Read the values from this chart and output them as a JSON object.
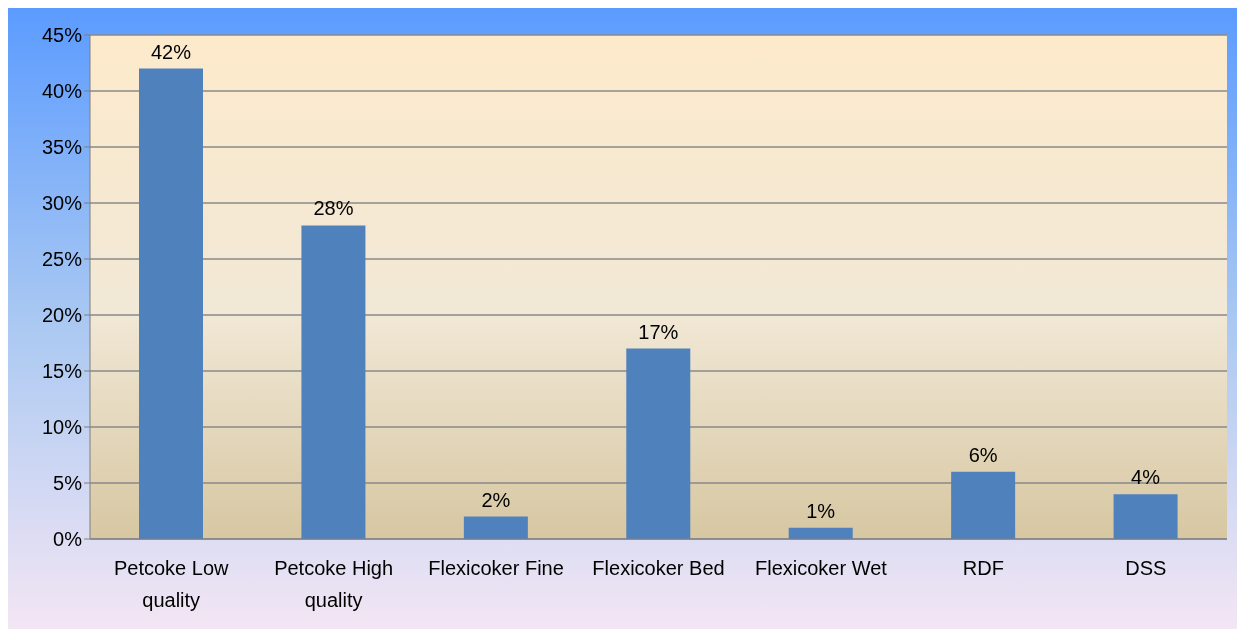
{
  "chart_data": {
    "type": "bar",
    "categories": [
      "Petcoke Low quality",
      "Petcoke High quality",
      "Flexicoker Fine",
      "Flexicoker Bed",
      "Flexicoker Wet",
      "RDF",
      "DSS"
    ],
    "values": [
      42,
      28,
      2,
      17,
      1,
      6,
      4
    ],
    "value_labels": [
      "42%",
      "28%",
      "2%",
      "17%",
      "1%",
      "6%",
      "4%"
    ],
    "color": "#4f81bd",
    "ylim": [
      0,
      45
    ],
    "yticks": [
      {
        "value": 0,
        "label": "0%"
      },
      {
        "value": 5,
        "label": "5%"
      },
      {
        "value": 10,
        "label": "10%"
      },
      {
        "value": 15,
        "label": "15%"
      },
      {
        "value": 20,
        "label": "20%"
      },
      {
        "value": 25,
        "label": "25%"
      },
      {
        "value": 30,
        "label": "30%"
      },
      {
        "value": 35,
        "label": "35%"
      },
      {
        "value": 40,
        "label": "40%"
      },
      {
        "value": 45,
        "label": "45%"
      }
    ],
    "grid": "y",
    "legend": false
  }
}
